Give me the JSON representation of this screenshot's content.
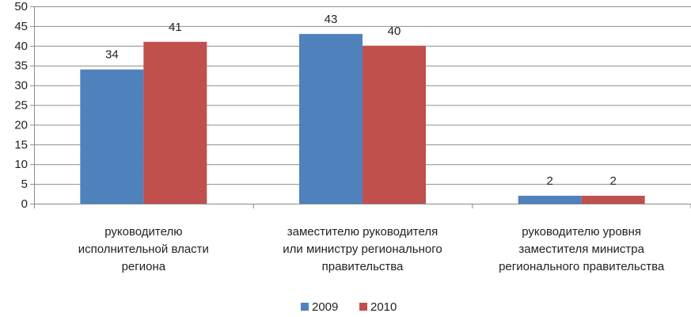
{
  "chart_data": {
    "type": "bar",
    "categories": [
      [
        "руководителю",
        "исполнительной власти",
        "региона"
      ],
      [
        "заместителю руководителя",
        "или министру регионального",
        "правительства"
      ],
      [
        "руководителю уровня",
        "заместителя министра",
        "регионального правительства"
      ]
    ],
    "series": [
      {
        "name": "2009",
        "values": [
          34,
          43,
          2
        ],
        "color": "#4F81BD"
      },
      {
        "name": "2010",
        "values": [
          41,
          40,
          2
        ],
        "color": "#C0504D"
      }
    ],
    "ylim": [
      0,
      50
    ],
    "yticks": [
      0,
      5,
      10,
      15,
      20,
      25,
      30,
      35,
      40,
      45,
      50
    ],
    "grid": true,
    "legend_position": "bottom"
  }
}
